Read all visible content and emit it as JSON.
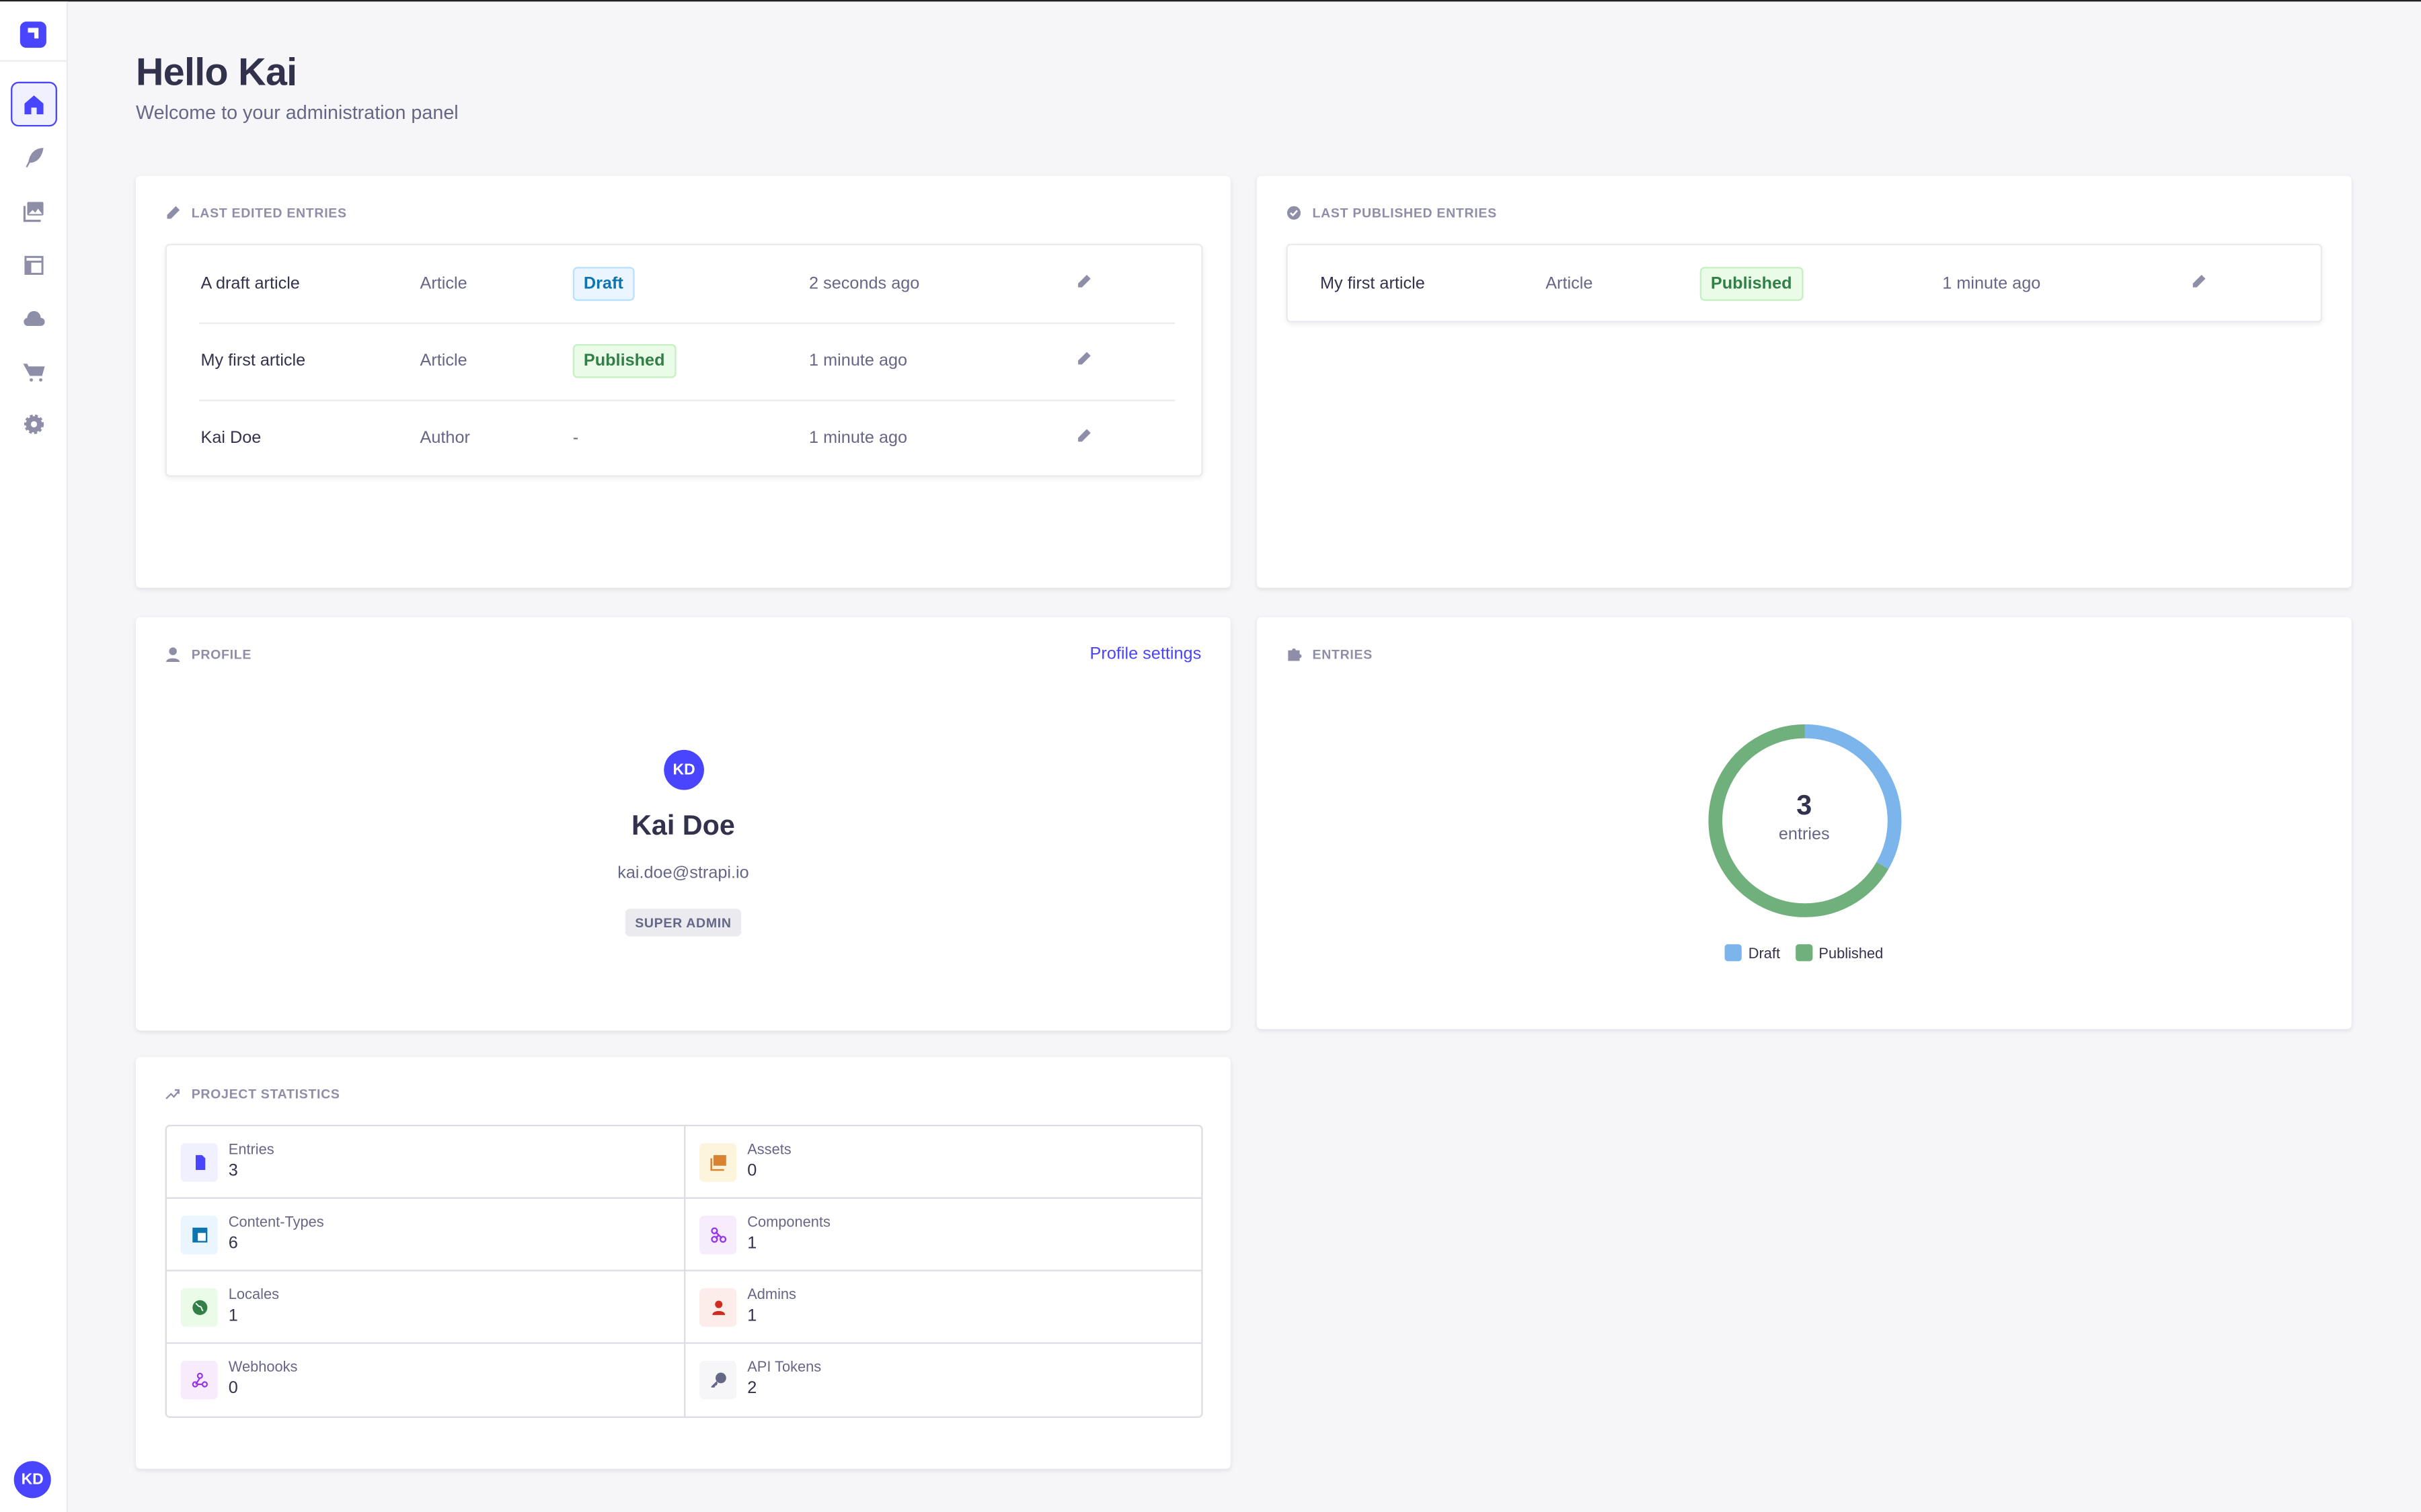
{
  "sidebar": {
    "items": [
      {
        "name": "home",
        "icon": "house-icon",
        "active": true
      },
      {
        "name": "content-manager",
        "icon": "feather-icon"
      },
      {
        "name": "media-library",
        "icon": "images-icon"
      },
      {
        "name": "content-type-builder",
        "icon": "layout-icon"
      },
      {
        "name": "cloud",
        "icon": "cloud-icon"
      },
      {
        "name": "marketplace",
        "icon": "cart-icon"
      },
      {
        "name": "settings",
        "icon": "gear-icon"
      }
    ],
    "user_initials": "KD"
  },
  "header": {
    "title": "Hello Kai",
    "subtitle": "Welcome to your administration panel"
  },
  "last_edited": {
    "title": "LAST EDITED ENTRIES",
    "rows": [
      {
        "name": "A draft article",
        "type": "Article",
        "status": "Draft",
        "time": "2 seconds ago"
      },
      {
        "name": "My first article",
        "type": "Article",
        "status": "Published",
        "time": "1 minute ago"
      },
      {
        "name": "Kai Doe",
        "type": "Author",
        "status": "-",
        "time": "1 minute ago"
      }
    ]
  },
  "last_published": {
    "title": "LAST PUBLISHED ENTRIES",
    "rows": [
      {
        "name": "My first article",
        "type": "Article",
        "status": "Published",
        "time": "1 minute ago"
      }
    ]
  },
  "profile": {
    "title": "PROFILE",
    "settings_link": "Profile settings",
    "initials": "KD",
    "name": "Kai Doe",
    "email": "kai.doe@strapi.io",
    "role": "SUPER ADMIN"
  },
  "entries": {
    "title": "ENTRIES",
    "total": "3",
    "unit": "entries"
  },
  "chart_data": {
    "type": "pie",
    "variant": "donut",
    "categories": [
      "Draft",
      "Published"
    ],
    "values": [
      1,
      2
    ],
    "colors": [
      "#7cb5ec",
      "#70b07c"
    ],
    "center_label": "3 entries",
    "legend_placement": "bottom"
  },
  "stats": {
    "title": "PROJECT STATISTICS",
    "items": [
      {
        "label": "Entries",
        "value": "3",
        "icon": "document-icon",
        "color": "#4945ff",
        "bg": "#f0f0ff"
      },
      {
        "label": "Assets",
        "value": "0",
        "icon": "images-icon",
        "color": "#d9822f",
        "bg": "#fdf4dc"
      },
      {
        "label": "Content-Types",
        "value": "6",
        "icon": "layout-icon",
        "color": "#0c75af",
        "bg": "#eaf5ff"
      },
      {
        "label": "Components",
        "value": "1",
        "icon": "puzzle-icon",
        "color": "#9736e8",
        "bg": "#f6ecfc"
      },
      {
        "label": "Locales",
        "value": "1",
        "icon": "globe-icon",
        "color": "#328048",
        "bg": "#eafbe7"
      },
      {
        "label": "Admins",
        "value": "1",
        "icon": "user-icon",
        "color": "#d02b20",
        "bg": "#fcecea"
      },
      {
        "label": "Webhooks",
        "value": "0",
        "icon": "webhook-icon",
        "color": "#9736e8",
        "bg": "#f6ecfc"
      },
      {
        "label": "API Tokens",
        "value": "2",
        "icon": "key-icon",
        "color": "#666687",
        "bg": "#f6f6f9"
      }
    ]
  }
}
